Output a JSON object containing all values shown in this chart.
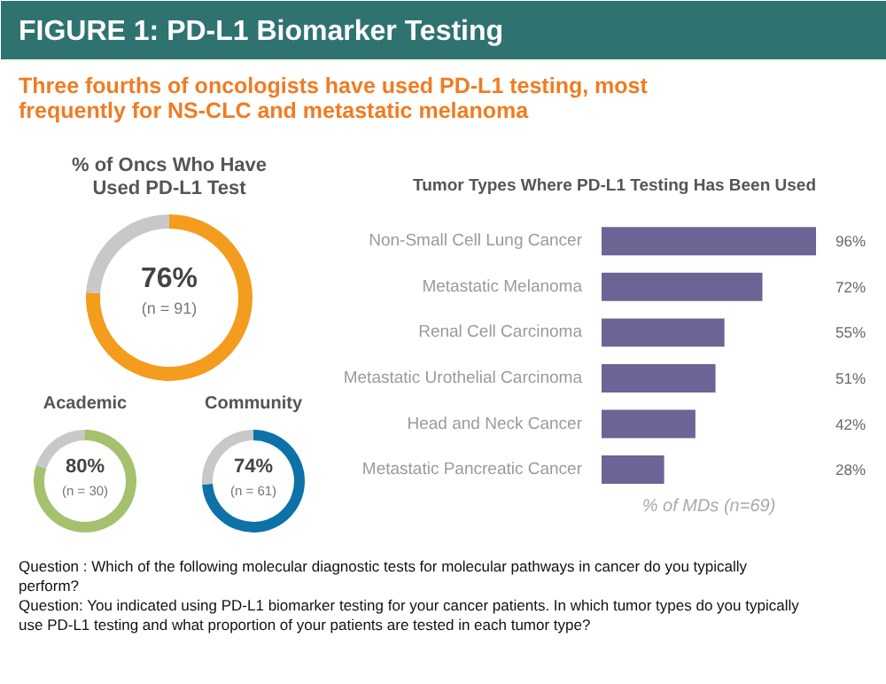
{
  "chart_data": [
    {
      "type": "other",
      "title": "FIGURE 1: PD-L1 Biomarker Testing",
      "subtitle": "Three fourths of oncologists have used PD-L1 testing, most frequently for NS-CLC and metastatic melanoma",
      "annotations": [
        "Question : Which of the following molecular diagnostic tests for molecular pathways in cancer do you typically perform?",
        "Question: You indicated using PD-L1 biomarker testing for your cancer patients. In which tumor types do you typically use PD-L1 testing and what proportion of your patients are tested in each tumor type?"
      ]
    },
    {
      "type": "donut",
      "title": "% of Oncs Who Have Used PD-L1 Test",
      "categories": [
        null,
        null
      ],
      "values": [
        76,
        24
      ],
      "colors": [
        "#f39c1e",
        "#c8c8c8"
      ],
      "value_labels": [
        "76%",
        null
      ],
      "annotations": [
        "(n = 91)"
      ]
    },
    {
      "type": "donut",
      "title": "Academic",
      "categories": [
        null,
        null
      ],
      "values": [
        80,
        20
      ],
      "colors": [
        "#a5c16e",
        "#c8c8c8"
      ],
      "value_labels": [
        "80%",
        null
      ],
      "annotations": [
        "(n = 30)"
      ]
    },
    {
      "type": "donut",
      "title": "Community",
      "categories": [
        null,
        null
      ],
      "values": [
        74,
        26
      ],
      "colors": [
        "#0c72a7",
        "#c8c8c8"
      ],
      "value_labels": [
        "74%",
        null
      ],
      "annotations": [
        "(n = 61)"
      ]
    },
    {
      "type": "bar",
      "orientation": "horizontal",
      "title": "Tumor Types Where PD-L1 Testing Has Been Used",
      "xlabel": "% of MDs (n=69)",
      "categories": [
        "Non-Small Cell Lung Cancer",
        "Metastatic Melanoma",
        "Renal Cell Carcinoma",
        "Metastatic Urothelial Carcinoma",
        "Head and Neck Cancer",
        "Metastatic Pancreatic Cancer"
      ],
      "values": [
        96,
        72,
        55,
        51,
        42,
        28
      ],
      "color": "#6b6494",
      "value_labels": [
        "96%",
        "72%",
        "55%",
        "51%",
        "42%",
        "28%"
      ],
      "tick_labels": "y"
    }
  ]
}
